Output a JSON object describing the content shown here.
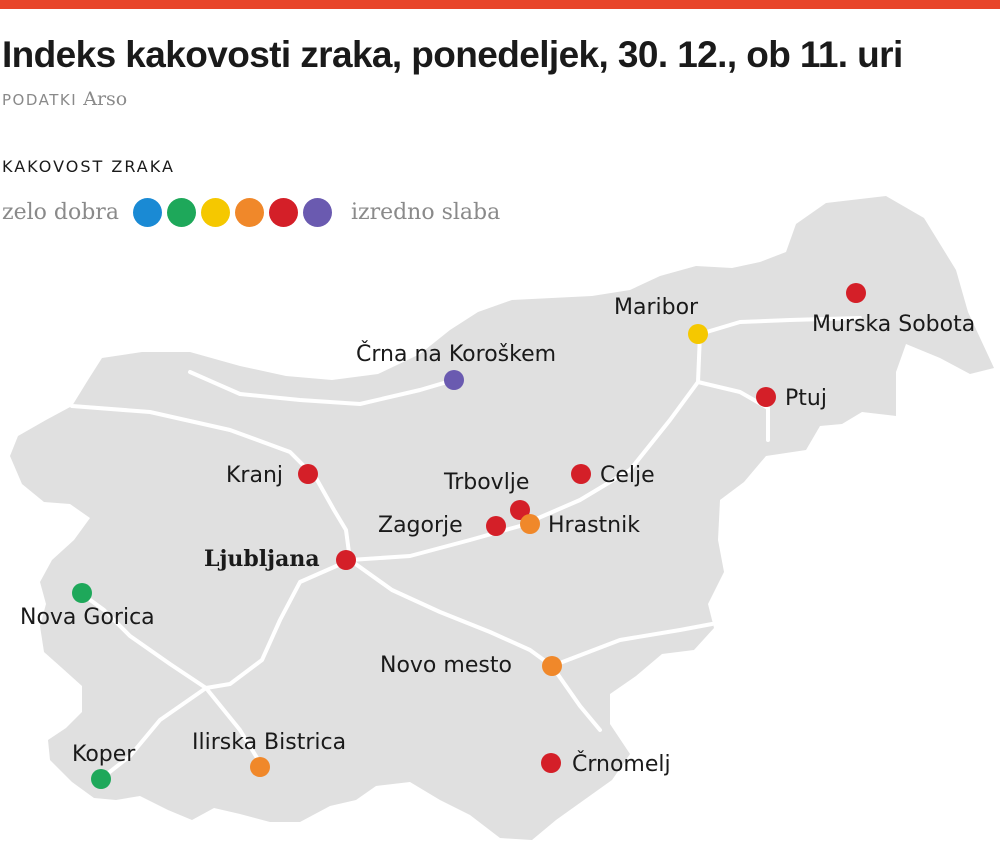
{
  "title": "Indeks kakovosti zraka, ponedeljek, 30. 12., ob 11. uri",
  "source": {
    "label": "PODATKI",
    "name": "Arso"
  },
  "legend": {
    "title": "KAKOVOST ZRAKA",
    "low": "zelo dobra",
    "high": "izredno slaba",
    "colors": [
      "#1a8ad4",
      "#1ea85a",
      "#f5c800",
      "#f0882a",
      "#d41f28",
      "#6a5ab0"
    ]
  },
  "colors": {
    "topbar": "#e8452a",
    "land": "#e0e0e0",
    "roads": "#ffffff"
  },
  "cities": [
    {
      "name": "Maribor",
      "quality": "yellow",
      "color": "#f5c800"
    },
    {
      "name": "Murska Sobota",
      "quality": "red",
      "color": "#d41f28"
    },
    {
      "name": "Črna na Koroškem",
      "quality": "purple",
      "color": "#6a5ab0"
    },
    {
      "name": "Ptuj",
      "quality": "red",
      "color": "#d41f28"
    },
    {
      "name": "Kranj",
      "quality": "red",
      "color": "#d41f28"
    },
    {
      "name": "Trbovlje",
      "quality": "red",
      "color": "#d41f28"
    },
    {
      "name": "Celje",
      "quality": "red",
      "color": "#d41f28"
    },
    {
      "name": "Zagorje",
      "quality": "red",
      "color": "#d41f28"
    },
    {
      "name": "Hrastnik",
      "quality": "orange",
      "color": "#f0882a"
    },
    {
      "name": "Ljubljana",
      "quality": "red",
      "color": "#d41f28"
    },
    {
      "name": "Nova Gorica",
      "quality": "green",
      "color": "#1ea85a"
    },
    {
      "name": "Novo mesto",
      "quality": "orange",
      "color": "#f0882a"
    },
    {
      "name": "Ilirska Bistrica",
      "quality": "orange",
      "color": "#f0882a"
    },
    {
      "name": "Koper",
      "quality": "green",
      "color": "#1ea85a"
    },
    {
      "name": "Črnomelj",
      "quality": "red",
      "color": "#d41f28"
    }
  ]
}
